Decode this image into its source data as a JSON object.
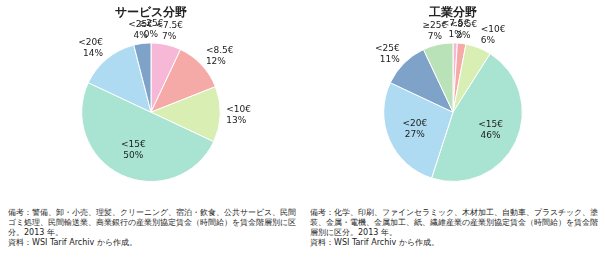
{
  "chart_data": [
    {
      "type": "pie",
      "title": "サービス分野",
      "categories": [
        "<7.5€",
        "<8.5€",
        "<10€",
        "<15€",
        "<20€",
        "<25€",
        "≥25€"
      ],
      "values": [
        7,
        12,
        13,
        50,
        14,
        4,
        0
      ],
      "value_labels": [
        "7%",
        "12%",
        "13%",
        "50%",
        "14%",
        "4%",
        "0%"
      ],
      "colors": [
        "#f7b8d8",
        "#f5aaa8",
        "#d9eeb3",
        "#a9e3d2",
        "#aedbf2",
        "#7fa3c8",
        "#b9e2b9"
      ],
      "data_labels": true,
      "annotations": [
        "備考：警備、卸・小売、理髪、クリーニング、宿泊・飲食、公共サービス、民間ゴミ処理、民間輸送業、商業銀行の産業別協定賃金（時間給）を賃金階層別に区分。2013 年。",
        "資料：WSI Tarif Archiv から作成。"
      ]
    },
    {
      "type": "pie",
      "title": "工業分野",
      "categories": [
        "<7.5€",
        "<8.5€",
        "<10€",
        "<15€",
        "<20€",
        "<25€",
        "≥25€"
      ],
      "values": [
        1,
        2,
        6,
        46,
        27,
        11,
        7
      ],
      "value_labels": [
        "1%",
        "2%",
        "6%",
        "46%",
        "27%",
        "11%",
        "7%"
      ],
      "colors": [
        "#f7b8d8",
        "#f5aaa8",
        "#d9eeb3",
        "#a9e3d2",
        "#aedbf2",
        "#7fa3c8",
        "#b9e2b9"
      ],
      "data_labels": true,
      "annotations": [
        "備考：化学、印刷、ファインセラミック、木材加工、自動車、プラスチック、塗装、金属・電機、金属加工、紙、繊維産業の産業別協定賃金（時間給）を賃金階層別に区分。2013 年。",
        "資料：WSI Tarif Archiv から作成。"
      ]
    }
  ]
}
